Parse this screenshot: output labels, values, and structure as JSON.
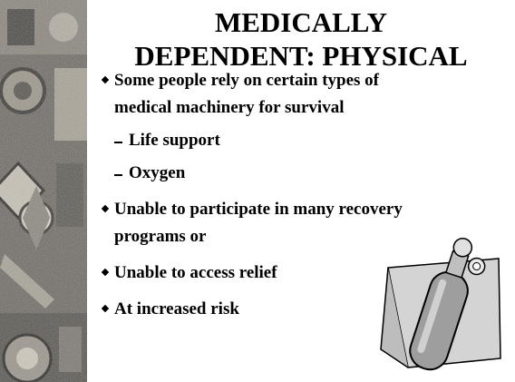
{
  "slide": {
    "title": "MEDICALLY DEPENDENT: PHYSICAL",
    "bullets": [
      {
        "level": 0,
        "text": "Some people rely on certain types of medical machinery for survival"
      },
      {
        "level": 1,
        "text": "Life support"
      },
      {
        "level": 1,
        "text": "Oxygen"
      },
      {
        "level": 0,
        "text": "Unable to participate in many recovery programs or"
      },
      {
        "level": 0,
        "text": "Unable to access relief"
      },
      {
        "level": 0,
        "text": "At increased risk"
      }
    ]
  }
}
